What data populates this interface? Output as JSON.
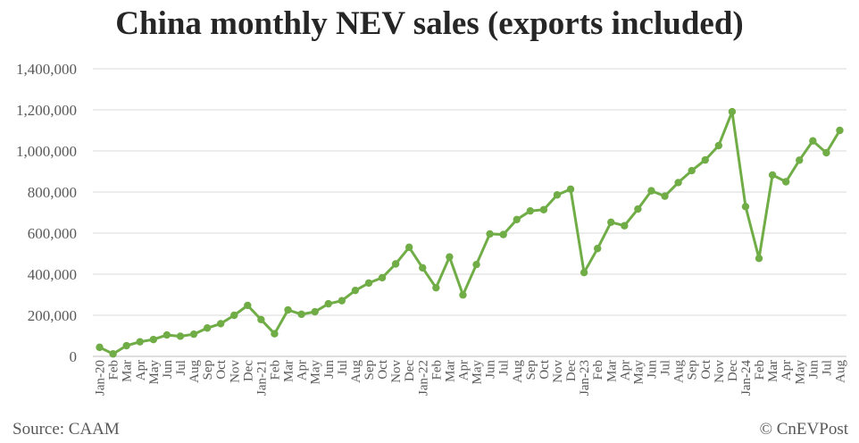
{
  "chart_data": {
    "type": "line",
    "title": "China monthly NEV sales (exports included)",
    "xlabel": "",
    "ylabel": "",
    "ylim": [
      0,
      1400000
    ],
    "yticks": [
      0,
      200000,
      400000,
      600000,
      800000,
      1000000,
      1200000,
      1400000
    ],
    "ytick_labels": [
      "0",
      "200,000",
      "400,000",
      "600,000",
      "800,000",
      "1,000,000",
      "1,200,000",
      "1,400,000"
    ],
    "grid": true,
    "legend": "none",
    "line_color": "#70AD47",
    "categories": [
      "Jan-20",
      "Feb",
      "Mar",
      "Apr",
      "May",
      "Jun",
      "Jul",
      "Aug",
      "Sep",
      "Oct",
      "Nov",
      "Dec",
      "Jan-21",
      "Feb",
      "Mar",
      "Apr",
      "May",
      "Jun",
      "Jul",
      "Aug",
      "Sep",
      "Oct",
      "Nov",
      "Dec",
      "Jan-22",
      "Feb",
      "Mar",
      "Apr",
      "May",
      "Jun",
      "Jul",
      "Aug",
      "Sep",
      "Oct",
      "Nov",
      "Dec",
      "Jan-23",
      "Feb",
      "Mar",
      "Apr",
      "May",
      "Jun",
      "Jul",
      "Aug",
      "Sep",
      "Oct",
      "Nov",
      "Dec",
      "Jan-24",
      "Feb",
      "Mar",
      "Apr",
      "May",
      "Jun",
      "Jul",
      "Aug"
    ],
    "values": [
      44000,
      12000,
      52000,
      71000,
      82000,
      104000,
      98000,
      108000,
      138000,
      159000,
      200000,
      248000,
      179000,
      110000,
      226000,
      205000,
      217000,
      256000,
      271000,
      321000,
      357000,
      383000,
      450000,
      531000,
      431000,
      334000,
      484000,
      299000,
      447000,
      596000,
      593000,
      666000,
      708000,
      714000,
      786000,
      814000,
      408000,
      525000,
      653000,
      636000,
      717000,
      806000,
      780000,
      846000,
      904000,
      956000,
      1026000,
      1191000,
      729000,
      477000,
      883000,
      850000,
      955000,
      1049000,
      991000,
      1100000
    ]
  },
  "footer": {
    "source": "Source: CAAM",
    "credit": "© CnEVPost"
  }
}
